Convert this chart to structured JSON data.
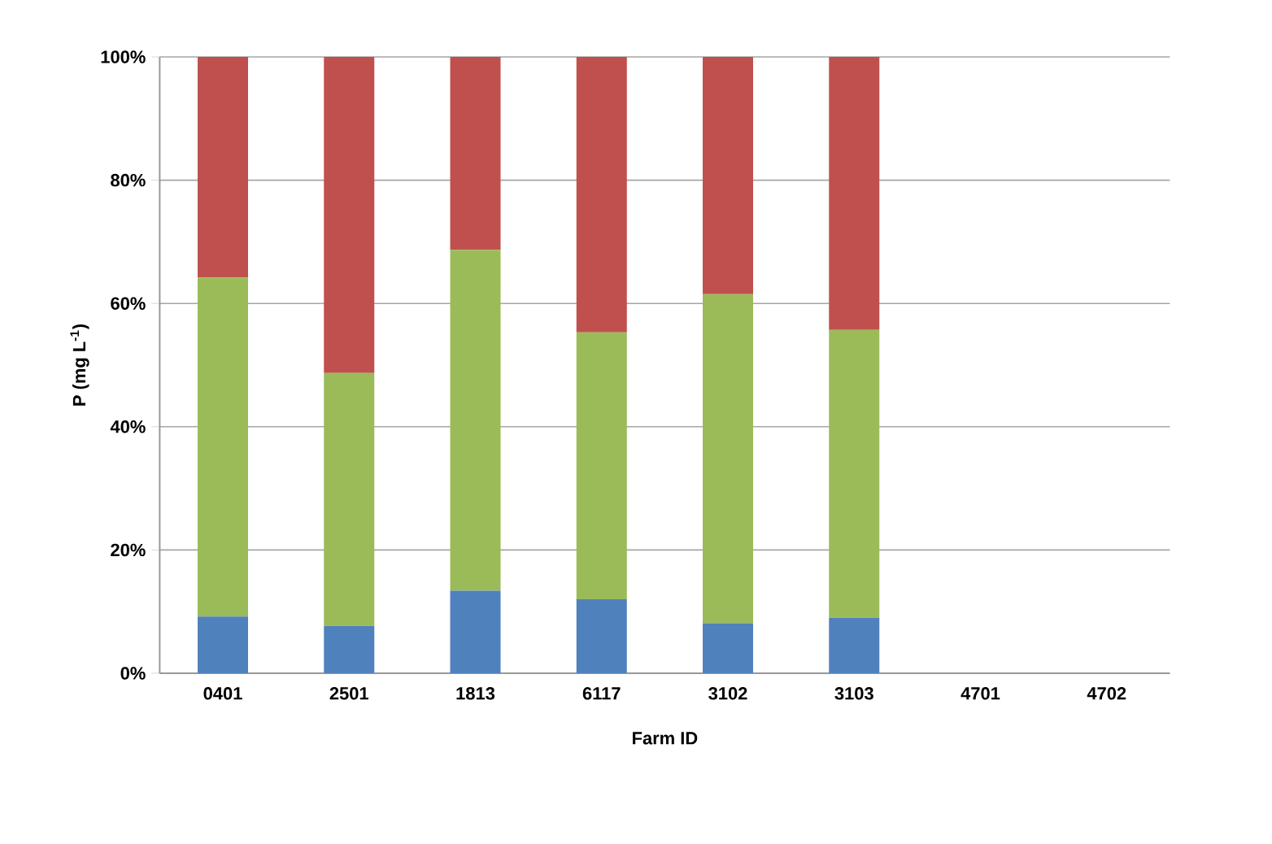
{
  "chart_data": {
    "type": "bar",
    "stacked": true,
    "xlabel": "Farm ID",
    "ylabel": "P (mg L$^{-1}$)",
    "categories": [
      "0401",
      "2501",
      "1813",
      "6117",
      "3102",
      "3103",
      "4701",
      "4702"
    ],
    "series": [
      {
        "color": "#4f81bd",
        "values": [
          9.2,
          7.7,
          13.4,
          12.0,
          8.1,
          9.0,
          null,
          null
        ]
      },
      {
        "color": "#9bbb59",
        "values": [
          55.0,
          41.0,
          55.3,
          43.3,
          53.4,
          46.7,
          null,
          null
        ]
      },
      {
        "color": "#c0504d",
        "values": [
          35.8,
          51.3,
          31.3,
          44.7,
          38.5,
          44.3,
          null,
          null
        ]
      }
    ],
    "ylim": [
      0,
      100
    ],
    "yticks": [
      {
        "value": 0,
        "label": "0%"
      },
      {
        "value": 20,
        "label": "20%"
      },
      {
        "value": 40,
        "label": "40%"
      },
      {
        "value": 60,
        "label": "60%"
      },
      {
        "value": 80,
        "label": "80%"
      },
      {
        "value": 100,
        "label": "100%"
      }
    ],
    "grid": "y"
  }
}
